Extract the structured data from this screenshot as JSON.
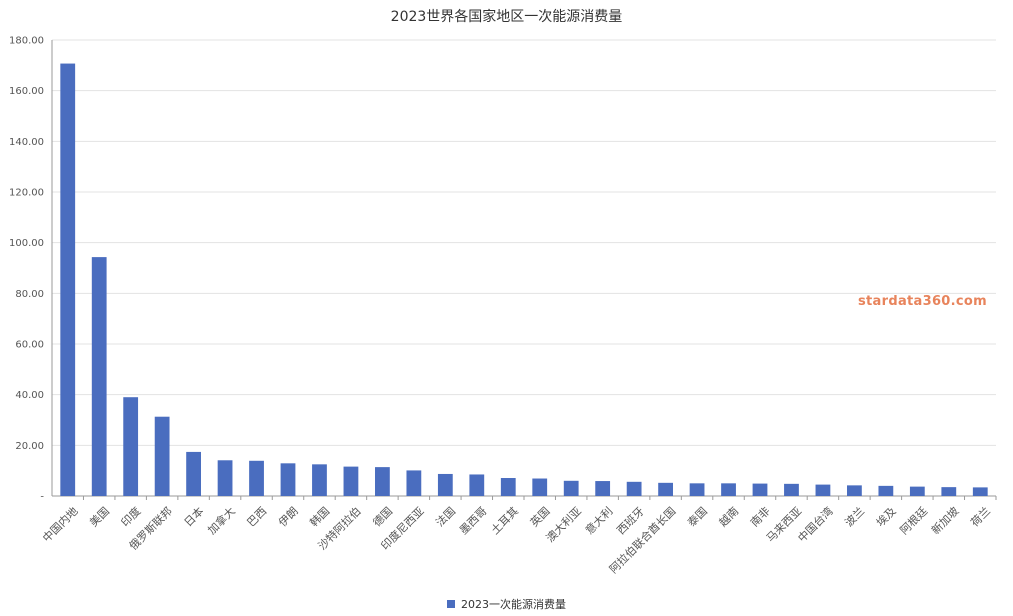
{
  "watermark": "stardata360.com",
  "colors": {
    "bar": "#4a6dbf",
    "grid": "#e3e3e3",
    "axis": "#9a9a9a"
  },
  "chart_data": {
    "type": "bar",
    "title": "2023世界各国家地区一次能源消费量",
    "xlabel": "",
    "ylabel": "",
    "ylim": [
      0,
      180
    ],
    "yticks": [
      0,
      20,
      40,
      60,
      80,
      100,
      120,
      140,
      160,
      180
    ],
    "ytick_labels": [
      "-",
      "20.00",
      "40.00",
      "60.00",
      "80.00",
      "100.00",
      "120.00",
      "140.00",
      "160.00",
      "180.00"
    ],
    "grid": true,
    "legend_position": "bottom-center",
    "categories": [
      "中国内地",
      "美国",
      "印度",
      "俄罗斯联邦",
      "日本",
      "加拿大",
      "巴西",
      "伊朗",
      "韩国",
      "沙特阿拉伯",
      "德国",
      "印度尼西亚",
      "法国",
      "墨西哥",
      "土耳其",
      "英国",
      "澳大利亚",
      "意大利",
      "西班牙",
      "阿拉伯联合酋长国",
      "泰国",
      "越南",
      "南非",
      "马来西亚",
      "中国台湾",
      "波兰",
      "埃及",
      "阿根廷",
      "新加坡",
      "荷兰"
    ],
    "series": [
      {
        "name": "2023一次能源消费量",
        "values": [
          170.7,
          94.3,
          39.0,
          31.3,
          17.4,
          14.1,
          13.9,
          12.9,
          12.5,
          11.6,
          11.4,
          10.1,
          8.7,
          8.5,
          7.1,
          6.9,
          6.0,
          5.9,
          5.6,
          5.2,
          5.0,
          5.0,
          4.9,
          4.8,
          4.5,
          4.2,
          4.0,
          3.7,
          3.5,
          3.4
        ]
      }
    ]
  }
}
